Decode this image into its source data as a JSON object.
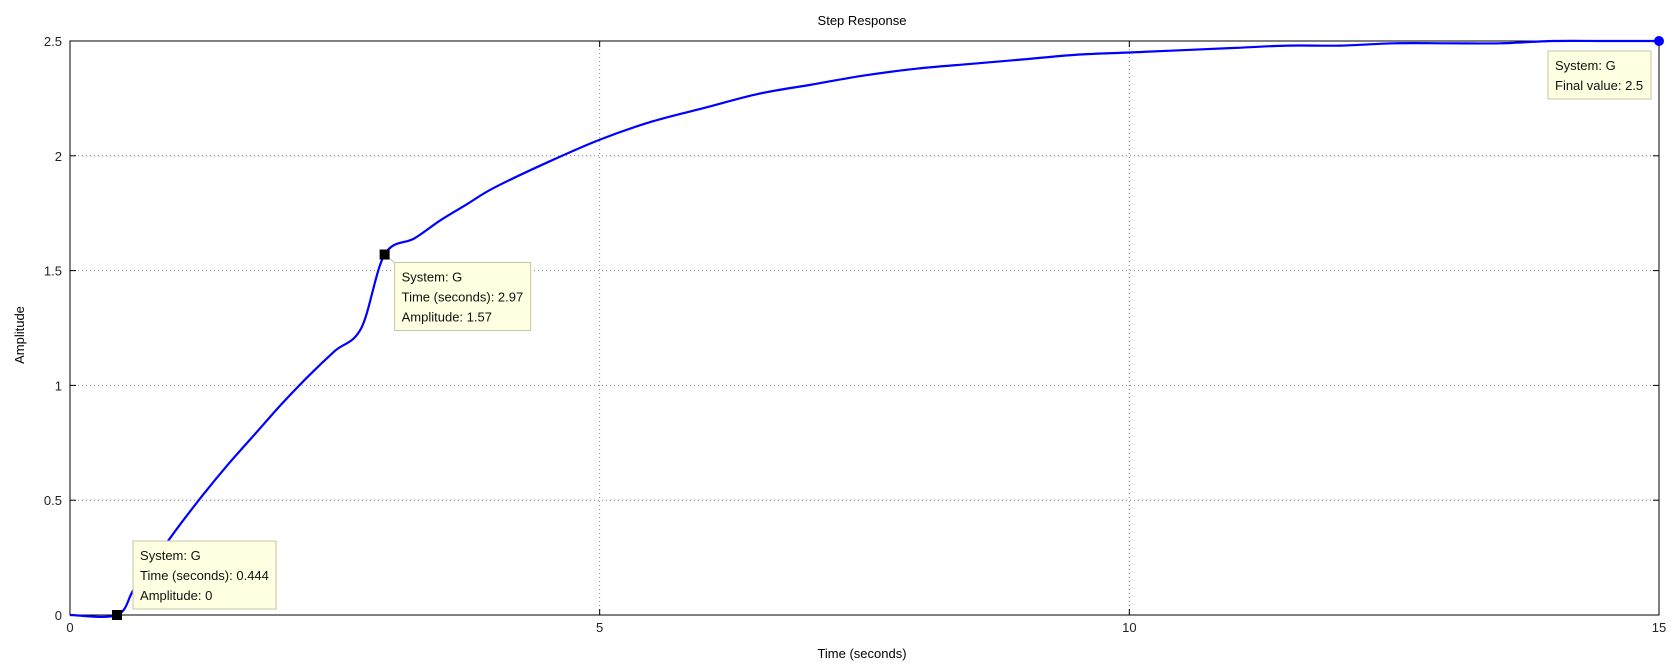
{
  "chart_data": {
    "type": "line",
    "title": "Step Response",
    "xlabel": "Time (seconds)",
    "ylabel": "Amplitude",
    "xlim": [
      0,
      15
    ],
    "ylim": [
      0,
      2.5
    ],
    "xticks": [
      0,
      5,
      10,
      15
    ],
    "xtick_labels": [
      "0",
      "5",
      "10",
      "15"
    ],
    "yticks": [
      0,
      0.5,
      1,
      1.5,
      2,
      2.5
    ],
    "ytick_labels": [
      "0",
      "0.5",
      "1",
      "1.5",
      "2",
      "2.5"
    ],
    "grid": true,
    "series": [
      {
        "name": "G",
        "color": "#0000ff",
        "x": [
          0,
          0.444,
          0.6,
          0.8,
          1.0,
          1.25,
          1.5,
          1.75,
          2.0,
          2.25,
          2.5,
          2.75,
          2.97,
          3.25,
          3.5,
          3.75,
          4.0,
          4.5,
          5.0,
          5.5,
          6.0,
          6.5,
          7.0,
          7.5,
          8.0,
          8.5,
          9.0,
          9.5,
          10.0,
          10.5,
          11.0,
          11.5,
          12.0,
          12.5,
          13.0,
          13.5,
          14.0,
          14.5,
          15.0
        ],
        "y": [
          0,
          0,
          0.11,
          0.24,
          0.37,
          0.52,
          0.66,
          0.79,
          0.92,
          1.04,
          1.15,
          1.25,
          1.57,
          1.64,
          1.72,
          1.79,
          1.86,
          1.97,
          2.07,
          2.15,
          2.21,
          2.27,
          2.31,
          2.35,
          2.38,
          2.4,
          2.42,
          2.44,
          2.45,
          2.46,
          2.47,
          2.48,
          2.48,
          2.49,
          2.49,
          2.49,
          2.5,
          2.5,
          2.5
        ]
      }
    ],
    "datatips": [
      {
        "x": 0.444,
        "y": 0,
        "marker": "square",
        "lines": [
          "System: G",
          "Time (seconds): 0.444",
          "Amplitude: 0"
        ]
      },
      {
        "x": 2.97,
        "y": 1.57,
        "marker": "square",
        "lines": [
          "System: G",
          "Time (seconds): 2.97",
          "Amplitude: 1.57"
        ]
      },
      {
        "x": 15,
        "y": 2.5,
        "marker": "circle",
        "lines": [
          "System: G",
          "Final value: 2.5"
        ]
      }
    ],
    "colors": {
      "line": "#0000ff",
      "grid": "#7f7f7f",
      "tip_bg": "#ffffe1",
      "tip_border": "#c7c7a3",
      "marker": "#000000"
    }
  }
}
